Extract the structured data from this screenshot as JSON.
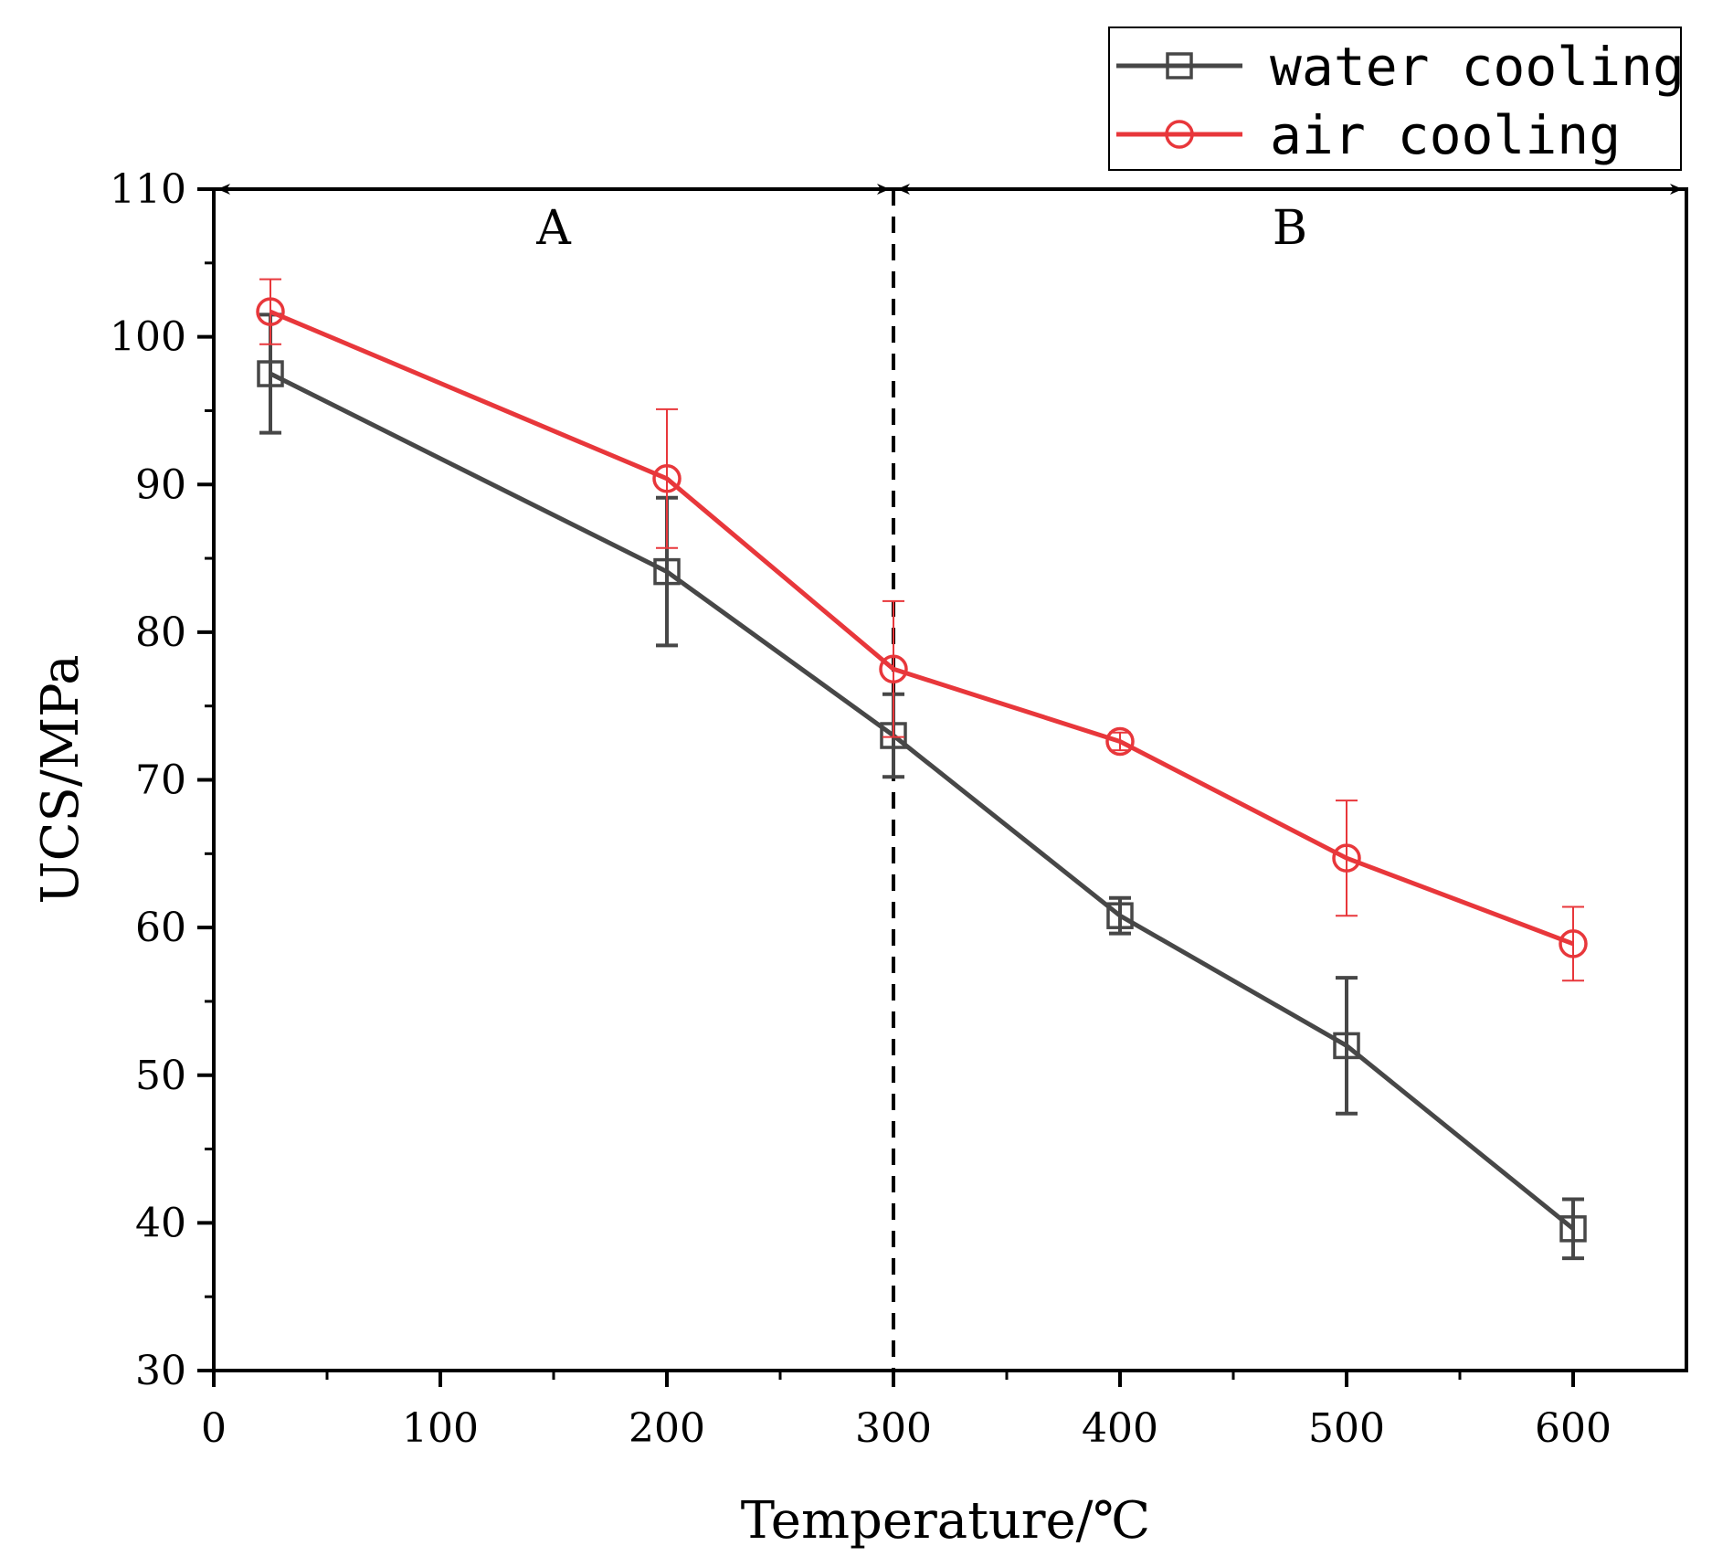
{
  "chart_data": {
    "type": "line",
    "xlabel": "Temperature/℃",
    "ylabel": "UCS/MPa",
    "xlim": [
      0,
      650
    ],
    "ylim": [
      30,
      110
    ],
    "x_ticks": [
      0,
      100,
      200,
      300,
      400,
      500,
      600
    ],
    "x_tick_labels": [
      "0",
      "100",
      "200",
      "300",
      "400",
      "500",
      "600"
    ],
    "y_ticks": [
      30,
      40,
      50,
      60,
      70,
      80,
      90,
      100,
      110
    ],
    "y_tick_labels": [
      "30",
      "40",
      "50",
      "60",
      "70",
      "80",
      "90",
      "100",
      "110"
    ],
    "series": [
      {
        "name": "water cooling",
        "color": "#474747",
        "marker": "square",
        "x": [
          25,
          200,
          300,
          400,
          500,
          600
        ],
        "values": [
          97.5,
          84.1,
          73.0,
          60.8,
          52.0,
          39.6
        ],
        "error": [
          4.0,
          5.0,
          2.8,
          1.2,
          4.6,
          2.0
        ]
      },
      {
        "name": "air cooling",
        "color": "#e8373b",
        "marker": "circle",
        "x": [
          25,
          200,
          300,
          400,
          500,
          600
        ],
        "values": [
          101.7,
          90.4,
          77.5,
          72.6,
          64.7,
          58.9
        ],
        "error": [
          2.2,
          4.7,
          4.6,
          0.6,
          3.9,
          2.5
        ]
      }
    ],
    "annotations": [
      {
        "type": "vline",
        "x": 300,
        "style": "dashed"
      },
      {
        "type": "region",
        "label": "A",
        "from": 0,
        "to": 300
      },
      {
        "type": "region",
        "label": "B",
        "from": 300,
        "to": 650
      }
    ],
    "legend": {
      "position": "top-right",
      "entries": [
        "water cooling",
        "air cooling"
      ]
    }
  }
}
